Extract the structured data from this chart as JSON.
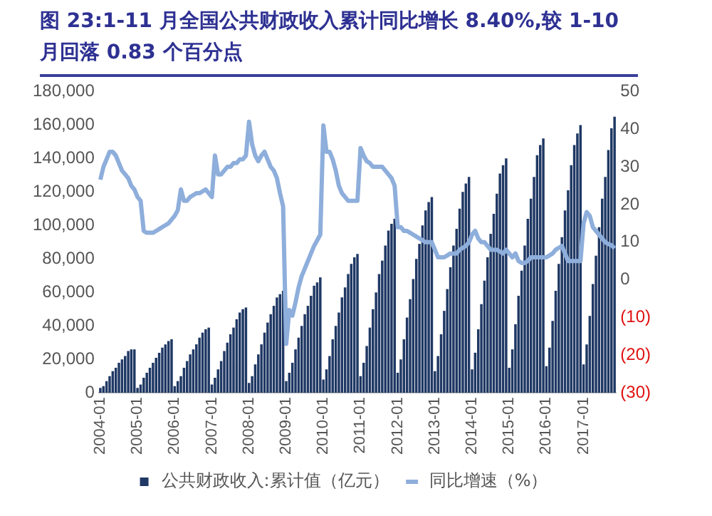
{
  "chart_data": {
    "type": "bar",
    "title": "图 23:1-11 月全国公共财政收入累计同比增长 8.40%,较 1-10 月回落 0.83 个百分点",
    "categories": [
      "2004-01",
      null,
      null,
      null,
      null,
      null,
      null,
      null,
      null,
      null,
      null,
      null,
      "2005-01",
      null,
      null,
      null,
      null,
      null,
      null,
      null,
      null,
      null,
      null,
      null,
      "2006-01",
      null,
      null,
      null,
      null,
      null,
      null,
      null,
      null,
      null,
      null,
      null,
      "2007-01",
      null,
      null,
      null,
      null,
      null,
      null,
      null,
      null,
      null,
      null,
      null,
      "2008-01",
      null,
      null,
      null,
      null,
      null,
      null,
      null,
      null,
      null,
      null,
      null,
      "2009-01",
      null,
      null,
      null,
      null,
      null,
      null,
      null,
      null,
      null,
      null,
      null,
      "2010-01",
      null,
      null,
      null,
      null,
      null,
      null,
      null,
      null,
      null,
      null,
      null,
      "2011-01",
      null,
      null,
      null,
      null,
      null,
      null,
      null,
      null,
      null,
      null,
      null,
      "2012-01",
      null,
      null,
      null,
      null,
      null,
      null,
      null,
      null,
      null,
      null,
      null,
      "2013-01",
      null,
      null,
      null,
      null,
      null,
      null,
      null,
      null,
      null,
      null,
      null,
      "2014-01",
      null,
      null,
      null,
      null,
      null,
      null,
      null,
      null,
      null,
      null,
      null,
      "2015-01",
      null,
      null,
      null,
      null,
      null,
      null,
      null,
      null,
      null,
      null,
      null,
      "2016-01",
      null,
      null,
      null,
      null,
      null,
      null,
      null,
      null,
      null,
      null,
      null,
      "2017-01",
      null,
      null,
      null,
      null,
      null,
      null,
      null,
      null,
      null,
      null
    ],
    "series": [
      {
        "name": "公共财政收入:累计值（亿元）",
        "color": "#1f3864",
        "values": [
          3000,
          4000,
          7000,
          10000,
          13000,
          15000,
          18000,
          20000,
          22000,
          25000,
          26000,
          26000,
          3000,
          5000,
          9000,
          12000,
          15000,
          18000,
          21000,
          24000,
          27000,
          29000,
          31000,
          32000,
          4000,
          7000,
          10000,
          15000,
          19000,
          23000,
          26000,
          29000,
          33000,
          36000,
          38000,
          39000,
          5000,
          9000,
          14000,
          19000,
          25000,
          30000,
          35000,
          39000,
          44000,
          48000,
          50000,
          51000,
          6000,
          10000,
          17000,
          23000,
          29000,
          36000,
          42000,
          47000,
          52000,
          57000,
          59000,
          61000,
          7000,
          12000,
          18000,
          26000,
          33000,
          40000,
          47000,
          52000,
          58000,
          64000,
          66000,
          69000,
          8000,
          14000,
          22000,
          32000,
          40000,
          48000,
          57000,
          63000,
          71000,
          77000,
          81000,
          83000,
          10000,
          18000,
          28000,
          39000,
          50000,
          60000,
          71000,
          79000,
          88000,
          97000,
          101000,
          104000,
          12000,
          20000,
          32000,
          45000,
          56000,
          68000,
          80000,
          89000,
          100000,
          109000,
          114000,
          117000,
          13000,
          22000,
          35000,
          49000,
          62000,
          75000,
          88000,
          98000,
          110000,
          120000,
          125000,
          129000,
          14000,
          24000,
          38000,
          53000,
          67000,
          81000,
          95000,
          107000,
          119000,
          131000,
          136000,
          140000,
          15000,
          26000,
          41000,
          58000,
          73000,
          88000,
          104000,
          116000,
          129000,
          142000,
          148000,
          152000,
          16000,
          27000,
          43000,
          61000,
          77000,
          93000,
          109000,
          121000,
          136000,
          148000,
          155000,
          160000,
          17000,
          29000,
          46000,
          65000,
          82000,
          99000,
          116000,
          129000,
          145000,
          158000,
          165000
        ]
      },
      {
        "name": "同比增速（%）",
        "type": "line",
        "axis": "y2",
        "color": "#8eaedb",
        "values": [
          26.6,
          30,
          32,
          34,
          34,
          33,
          31,
          29,
          28,
          27,
          25,
          24,
          22,
          21,
          13,
          12.5,
          12.5,
          12.5,
          13,
          13.5,
          14,
          14.5,
          15,
          16,
          17,
          18.5,
          24,
          21,
          21,
          22,
          22.5,
          23,
          23,
          23.5,
          24,
          23,
          22,
          33,
          28,
          28,
          29,
          30,
          30,
          31,
          31,
          32,
          32,
          33,
          42,
          36,
          33,
          31.5,
          33,
          34,
          32,
          30,
          29,
          27,
          23,
          19.5,
          -17,
          -8,
          -9.5,
          -6,
          -2,
          1,
          3,
          5,
          7,
          9,
          10.5,
          12,
          41,
          34,
          34,
          32,
          29,
          25,
          23,
          22,
          21,
          21,
          21,
          21,
          35,
          33,
          31.5,
          31,
          30,
          30,
          30,
          30,
          29,
          28,
          27,
          25,
          14,
          14,
          13,
          13,
          12.5,
          12,
          11.5,
          11,
          10.5,
          10,
          10,
          10,
          8,
          6,
          6,
          6,
          6.5,
          7,
          7,
          7,
          8,
          8.5,
          9,
          10,
          12,
          13,
          11,
          10,
          10,
          9,
          8,
          8,
          8,
          7.5,
          7,
          8,
          7,
          6,
          7,
          5,
          4.5,
          4.5,
          5,
          6,
          6,
          6,
          6,
          6,
          6,
          6.5,
          7,
          8,
          8.5,
          9,
          7,
          5,
          5,
          5,
          5,
          5,
          15,
          18,
          17,
          14,
          13,
          12,
          11,
          10,
          9.5,
          9.2,
          8.4
        ]
      }
    ],
    "ylim": [
      0,
      180000
    ],
    "yticks": [
      {
        "value": 0,
        "label": "0"
      },
      {
        "value": 20000,
        "label": "20,000"
      },
      {
        "value": 40000,
        "label": "40,000"
      },
      {
        "value": 60000,
        "label": "60,000"
      },
      {
        "value": 80000,
        "label": "80,000"
      },
      {
        "value": 100000,
        "label": "100,000"
      },
      {
        "value": 120000,
        "label": "120,000"
      },
      {
        "value": 140000,
        "label": "140,000"
      },
      {
        "value": 160000,
        "label": "160,000"
      },
      {
        "value": 180000,
        "label": "180,000"
      }
    ],
    "y2lim": [
      -30,
      50
    ],
    "y2ticks": [
      {
        "value": -30,
        "label": "(30)"
      },
      {
        "value": -20,
        "label": "(20)"
      },
      {
        "value": -10,
        "label": "(10)"
      },
      0,
      10,
      20,
      30,
      40,
      50
    ],
    "grid": false,
    "legend": "bottom",
    "marker": "none"
  }
}
